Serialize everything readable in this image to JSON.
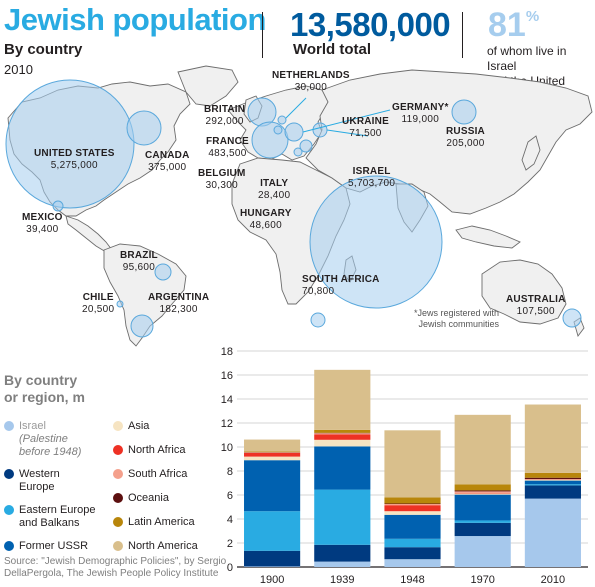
{
  "header": {
    "title": "Jewish population",
    "subtitle": "By country",
    "year": "2010",
    "world_total_value": "13,580,000",
    "world_total_label": "World total",
    "share_value": "81",
    "share_unit": "%",
    "share_label_1": "of whom live in Israel",
    "share_label_2": "and the United States"
  },
  "map": {
    "note_1": "*Jews registered with",
    "note_2": "Jewish communities",
    "countries": [
      {
        "name": "UNITED STATES",
        "value": "5,275,000",
        "population": 5275000
      },
      {
        "name": "CANADA",
        "value": "375,000",
        "population": 375000
      },
      {
        "name": "MEXICO",
        "value": "39,400",
        "population": 39400
      },
      {
        "name": "BRAZIL",
        "value": "95,600",
        "population": 95600
      },
      {
        "name": "CHILE",
        "value": "20,500",
        "population": 20500
      },
      {
        "name": "ARGENTINA",
        "value": "182,300",
        "population": 182300
      },
      {
        "name": "BRITAIN",
        "value": "292,000",
        "population": 292000
      },
      {
        "name": "FRANCE",
        "value": "483,500",
        "population": 483500
      },
      {
        "name": "BELGIUM",
        "value": "30,300",
        "population": 30300
      },
      {
        "name": "NETHERLANDS",
        "value": "30,000",
        "population": 30000
      },
      {
        "name": "GERMANY*",
        "value": "119,000",
        "population": 119000
      },
      {
        "name": "UKRAINE",
        "value": "71,500",
        "population": 71500
      },
      {
        "name": "ITALY",
        "value": "28,400",
        "population": 28400
      },
      {
        "name": "HUNGARY",
        "value": "48,600",
        "population": 48600
      },
      {
        "name": "RUSSIA",
        "value": "205,000",
        "population": 205000
      },
      {
        "name": "ISRAEL",
        "value": "5,703,700",
        "population": 5703700
      },
      {
        "name": "SOUTH AFRICA",
        "value": "70,800",
        "population": 70800
      },
      {
        "name": "AUSTRALIA",
        "value": "107,500",
        "population": 107500
      }
    ]
  },
  "legend": {
    "heading_1": "By country",
    "heading_2": "or region, m",
    "israel_note_1": "(Palestine",
    "israel_note_2": "before 1948)"
  },
  "source": "Source: \"Jewish Demographic Policies\", by Sergio DellaPergola, The Jewish People Policy Institute",
  "chart_data": {
    "type": "bar",
    "stacked": true,
    "categories": [
      "1900",
      "1939",
      "1948",
      "1970",
      "2010"
    ],
    "ylim": [
      0,
      18
    ],
    "yticks": [
      0,
      2,
      4,
      6,
      8,
      10,
      12,
      14,
      16,
      18
    ],
    "grid": true,
    "legend_position": "left",
    "series": [
      {
        "name": "Israel",
        "color": "#a6c8ec",
        "values": [
          0.05,
          0.45,
          0.65,
          2.58,
          5.7
        ]
      },
      {
        "name": "Western Europe",
        "color": "#003a80",
        "values": [
          1.3,
          1.4,
          1.0,
          1.1,
          1.1
        ]
      },
      {
        "name": "Eastern Europe and Balkans",
        "color": "#29abe2",
        "values": [
          3.3,
          4.6,
          0.7,
          0.2,
          0.1
        ]
      },
      {
        "name": "Former USSR",
        "color": "#0061b0",
        "values": [
          4.25,
          3.6,
          2.0,
          2.15,
          0.3
        ]
      },
      {
        "name": "Asia",
        "color": "#f6e4c2",
        "values": [
          0.3,
          0.55,
          0.3,
          0.1,
          0.05
        ]
      },
      {
        "name": "North Africa",
        "color": "#ee3124",
        "values": [
          0.3,
          0.45,
          0.5,
          0.05,
          0.01
        ]
      },
      {
        "name": "South Africa",
        "color": "#f4a08c",
        "values": [
          0.05,
          0.1,
          0.1,
          0.12,
          0.07
        ]
      },
      {
        "name": "Oceania",
        "color": "#5c0f0f",
        "values": [
          0.02,
          0.03,
          0.04,
          0.08,
          0.11
        ]
      },
      {
        "name": "Latin America",
        "color": "#b8860b",
        "values": [
          0.05,
          0.25,
          0.5,
          0.5,
          0.4
        ]
      },
      {
        "name": "North America",
        "color": "#d9bf8c",
        "values": [
          1.0,
          5.0,
          5.6,
          5.8,
          5.7
        ]
      }
    ]
  }
}
